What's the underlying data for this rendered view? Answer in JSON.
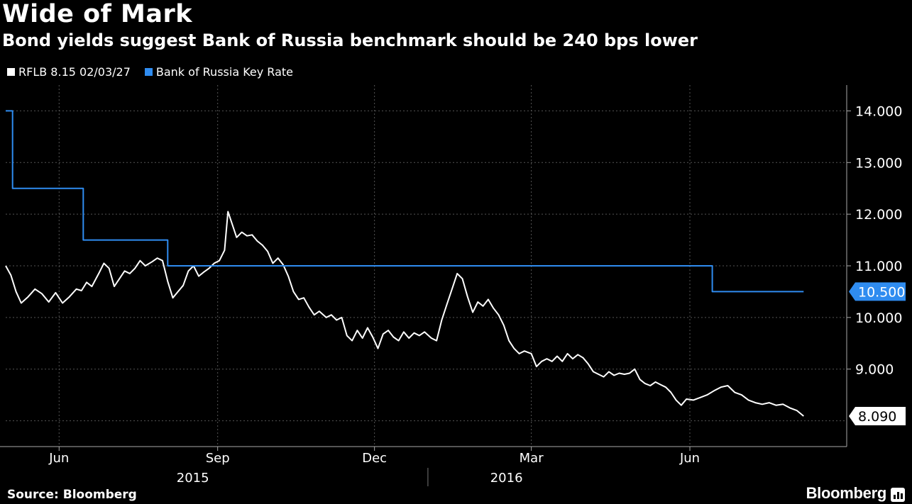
{
  "header": {
    "title": "Wide of Mark",
    "subtitle": "Bond yields suggest Bank of Russia benchmark should be 240 bps lower"
  },
  "footer": {
    "source": "Source: Bloomberg",
    "brand": "Bloomberg",
    "brand_icon": "bar-chart-icon"
  },
  "colors": {
    "background": "#000000",
    "bond": "#ffffff",
    "key_rate": "#2f8cf0",
    "grid": "#555555"
  },
  "chart_data": {
    "type": "line",
    "title": "Wide of Mark",
    "subtitle": "Bond yields suggest Bank of Russia benchmark should be 240 bps lower",
    "xlabel": "",
    "ylabel": "",
    "x_range": [
      "2015-05-01",
      "2016-08-31"
    ],
    "ylim": [
      7.5,
      14.5
    ],
    "y_ticks": [
      "14.000",
      "13.000",
      "12.000",
      "11.000",
      "10.000",
      "9.000"
    ],
    "x_tick_labels": [
      {
        "label": "Jun",
        "date": "2015-06-01"
      },
      {
        "label": "Sep",
        "date": "2015-09-01"
      },
      {
        "label": "Dec",
        "date": "2015-12-01"
      },
      {
        "label": "Mar",
        "date": "2016-03-01"
      },
      {
        "label": "Jun",
        "date": "2016-06-01"
      }
    ],
    "year_labels": [
      {
        "label": "2015",
        "date": "2015-09-01"
      },
      {
        "label": "2016",
        "date": "2016-03-01"
      }
    ],
    "grid": true,
    "legend_position": "top-left",
    "last_values": {
      "bond": "8.090",
      "key_rate": "10.500"
    },
    "series": [
      {
        "name": "RFLB 8.15 02/03/27",
        "color": "#ffffff",
        "points": [
          [
            "2015-05-01",
            11.0
          ],
          [
            "2015-05-04",
            10.82
          ],
          [
            "2015-05-07",
            10.5
          ],
          [
            "2015-05-10",
            10.28
          ],
          [
            "2015-05-14",
            10.4
          ],
          [
            "2015-05-18",
            10.55
          ],
          [
            "2015-05-22",
            10.46
          ],
          [
            "2015-05-26",
            10.3
          ],
          [
            "2015-05-30",
            10.48
          ],
          [
            "2015-06-03",
            10.28
          ],
          [
            "2015-06-07",
            10.4
          ],
          [
            "2015-06-11",
            10.55
          ],
          [
            "2015-06-14",
            10.52
          ],
          [
            "2015-06-17",
            10.68
          ],
          [
            "2015-06-20",
            10.6
          ],
          [
            "2015-06-24",
            10.85
          ],
          [
            "2015-06-27",
            11.05
          ],
          [
            "2015-06-30",
            10.95
          ],
          [
            "2015-07-03",
            10.6
          ],
          [
            "2015-07-06",
            10.75
          ],
          [
            "2015-07-09",
            10.9
          ],
          [
            "2015-07-12",
            10.85
          ],
          [
            "2015-07-15",
            10.95
          ],
          [
            "2015-07-18",
            11.1
          ],
          [
            "2015-07-21",
            11.0
          ],
          [
            "2015-07-25",
            11.08
          ],
          [
            "2015-07-28",
            11.15
          ],
          [
            "2015-07-31",
            11.1
          ],
          [
            "2015-08-03",
            10.7
          ],
          [
            "2015-08-06",
            10.38
          ],
          [
            "2015-08-09",
            10.5
          ],
          [
            "2015-08-12",
            10.62
          ],
          [
            "2015-08-15",
            10.9
          ],
          [
            "2015-08-18",
            11.0
          ],
          [
            "2015-08-21",
            10.8
          ],
          [
            "2015-08-24",
            10.88
          ],
          [
            "2015-08-27",
            10.95
          ],
          [
            "2015-08-30",
            11.05
          ],
          [
            "2015-09-02",
            11.1
          ],
          [
            "2015-09-05",
            11.3
          ],
          [
            "2015-09-07",
            12.05
          ],
          [
            "2015-09-09",
            11.85
          ],
          [
            "2015-09-12",
            11.55
          ],
          [
            "2015-09-15",
            11.65
          ],
          [
            "2015-09-18",
            11.58
          ],
          [
            "2015-09-21",
            11.6
          ],
          [
            "2015-09-24",
            11.48
          ],
          [
            "2015-09-27",
            11.4
          ],
          [
            "2015-09-30",
            11.28
          ],
          [
            "2015-10-03",
            11.05
          ],
          [
            "2015-10-06",
            11.15
          ],
          [
            "2015-10-09",
            11.02
          ],
          [
            "2015-10-12",
            10.8
          ],
          [
            "2015-10-15",
            10.5
          ],
          [
            "2015-10-18",
            10.35
          ],
          [
            "2015-10-21",
            10.38
          ],
          [
            "2015-10-24",
            10.2
          ],
          [
            "2015-10-27",
            10.05
          ],
          [
            "2015-10-30",
            10.12
          ],
          [
            "2015-11-03",
            10.0
          ],
          [
            "2015-11-06",
            10.05
          ],
          [
            "2015-11-09",
            9.95
          ],
          [
            "2015-11-12",
            10.0
          ],
          [
            "2015-11-15",
            9.65
          ],
          [
            "2015-11-18",
            9.55
          ],
          [
            "2015-11-21",
            9.75
          ],
          [
            "2015-11-24",
            9.6
          ],
          [
            "2015-11-27",
            9.8
          ],
          [
            "2015-11-30",
            9.62
          ],
          [
            "2015-12-03",
            9.4
          ],
          [
            "2015-12-06",
            9.68
          ],
          [
            "2015-12-09",
            9.75
          ],
          [
            "2015-12-12",
            9.62
          ],
          [
            "2015-12-15",
            9.55
          ],
          [
            "2015-12-18",
            9.72
          ],
          [
            "2015-12-21",
            9.6
          ],
          [
            "2015-12-24",
            9.7
          ],
          [
            "2015-12-27",
            9.65
          ],
          [
            "2015-12-30",
            9.72
          ],
          [
            "2016-01-03",
            9.6
          ],
          [
            "2016-01-06",
            9.55
          ],
          [
            "2016-01-09",
            9.95
          ],
          [
            "2016-01-12",
            10.25
          ],
          [
            "2016-01-15",
            10.55
          ],
          [
            "2016-01-18",
            10.85
          ],
          [
            "2016-01-21",
            10.75
          ],
          [
            "2016-01-24",
            10.4
          ],
          [
            "2016-01-27",
            10.1
          ],
          [
            "2016-01-30",
            10.3
          ],
          [
            "2016-02-02",
            10.22
          ],
          [
            "2016-02-05",
            10.35
          ],
          [
            "2016-02-08",
            10.18
          ],
          [
            "2016-02-11",
            10.05
          ],
          [
            "2016-02-14",
            9.85
          ],
          [
            "2016-02-17",
            9.55
          ],
          [
            "2016-02-20",
            9.4
          ],
          [
            "2016-02-23",
            9.3
          ],
          [
            "2016-02-26",
            9.35
          ],
          [
            "2016-03-01",
            9.3
          ],
          [
            "2016-03-04",
            9.05
          ],
          [
            "2016-03-07",
            9.15
          ],
          [
            "2016-03-10",
            9.2
          ],
          [
            "2016-03-13",
            9.15
          ],
          [
            "2016-03-16",
            9.25
          ],
          [
            "2016-03-19",
            9.15
          ],
          [
            "2016-03-22",
            9.3
          ],
          [
            "2016-03-25",
            9.2
          ],
          [
            "2016-03-28",
            9.28
          ],
          [
            "2016-03-31",
            9.22
          ],
          [
            "2016-04-03",
            9.1
          ],
          [
            "2016-04-06",
            8.95
          ],
          [
            "2016-04-09",
            8.9
          ],
          [
            "2016-04-12",
            8.85
          ],
          [
            "2016-04-15",
            8.95
          ],
          [
            "2016-04-18",
            8.88
          ],
          [
            "2016-04-21",
            8.92
          ],
          [
            "2016-04-24",
            8.9
          ],
          [
            "2016-04-27",
            8.92
          ],
          [
            "2016-04-30",
            9.0
          ],
          [
            "2016-05-03",
            8.8
          ],
          [
            "2016-05-06",
            8.72
          ],
          [
            "2016-05-09",
            8.68
          ],
          [
            "2016-05-12",
            8.75
          ],
          [
            "2016-05-15",
            8.7
          ],
          [
            "2016-05-18",
            8.65
          ],
          [
            "2016-05-21",
            8.55
          ],
          [
            "2016-05-24",
            8.4
          ],
          [
            "2016-05-27",
            8.3
          ],
          [
            "2016-05-30",
            8.42
          ],
          [
            "2016-06-03",
            8.4
          ],
          [
            "2016-06-07",
            8.45
          ],
          [
            "2016-06-11",
            8.5
          ],
          [
            "2016-06-15",
            8.58
          ],
          [
            "2016-06-19",
            8.65
          ],
          [
            "2016-06-23",
            8.68
          ],
          [
            "2016-06-27",
            8.55
          ],
          [
            "2016-07-01",
            8.5
          ],
          [
            "2016-07-05",
            8.4
          ],
          [
            "2016-07-09",
            8.35
          ],
          [
            "2016-07-13",
            8.32
          ],
          [
            "2016-07-17",
            8.35
          ],
          [
            "2016-07-21",
            8.3
          ],
          [
            "2016-07-25",
            8.32
          ],
          [
            "2016-07-29",
            8.25
          ],
          [
            "2016-08-02",
            8.2
          ],
          [
            "2016-08-06",
            8.09
          ]
        ]
      },
      {
        "name": "Bank of Russia Key Rate",
        "color": "#2f8cf0",
        "points": [
          [
            "2015-05-01",
            14.0
          ],
          [
            "2015-05-05",
            14.0
          ],
          [
            "2015-05-05",
            12.5
          ],
          [
            "2015-06-15",
            12.5
          ],
          [
            "2015-06-15",
            11.5
          ],
          [
            "2015-08-03",
            11.5
          ],
          [
            "2015-08-03",
            11.0
          ],
          [
            "2016-06-14",
            11.0
          ],
          [
            "2016-06-14",
            10.5
          ],
          [
            "2016-08-06",
            10.5
          ]
        ]
      }
    ]
  }
}
